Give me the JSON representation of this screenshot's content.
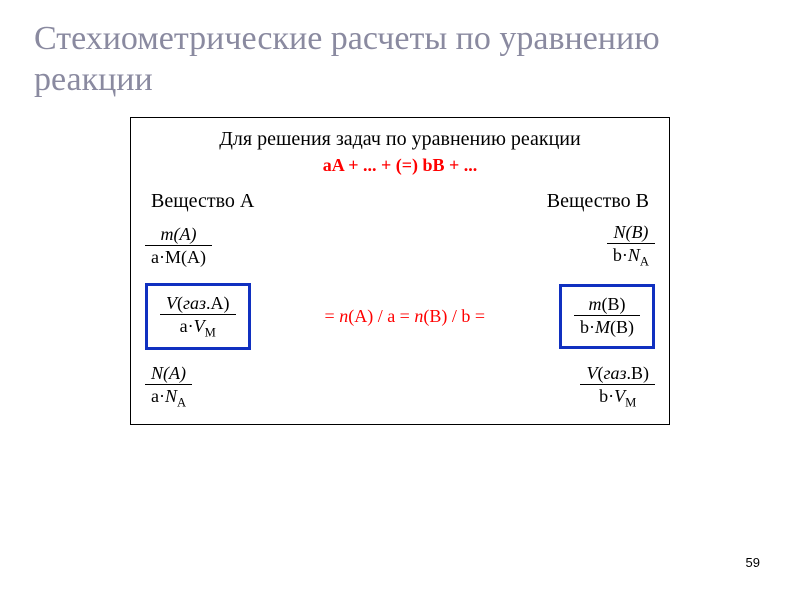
{
  "title": "Стехиометрические расчеты по уравнению реакции",
  "intro": "Для решения задач по уравнению реакции",
  "equation": "aA + ... + (=) bB + ...",
  "substanceA": "Вещество A",
  "substanceB": "Вещество B",
  "row1": {
    "left": {
      "num": "m(A)",
      "den": "a·M(A)"
    },
    "right": {
      "num": "N(B)",
      "den_html": "b·<span class=\"it\">N</span><span class=\"sub\">A</span>"
    }
  },
  "middle": {
    "left": {
      "num_html": "<span class=\"it\">V</span>(<span class=\"it\">газ</span>.A)",
      "den_html": "a·<span class=\"it\">V</span><span class=\"sub\">M</span>"
    },
    "center_html": "= <span class=\"it\">n</span>(A) / a = <span class=\"it\">n</span>(B) / b =",
    "right": {
      "num_html": "<span class=\"it\">m</span>(B)",
      "den_html": "b·<span class=\"it\">M</span>(B)"
    }
  },
  "row3": {
    "left": {
      "num": "N(A)",
      "den_html": "a·<span class=\"it\">N</span><span class=\"sub\">A</span>"
    },
    "right": {
      "num_html": "<span class=\"it\">V</span>(<span class=\"it\">газ</span>.B)",
      "den_html": "b·<span class=\"it\">V</span><span class=\"sub\">M</span>"
    }
  },
  "page": "59",
  "colors": {
    "title_color": "#8a8aa0",
    "accent_red": "#ff0000",
    "box_blue": "#1030c0",
    "text": "#000000",
    "background": "#ffffff"
  }
}
